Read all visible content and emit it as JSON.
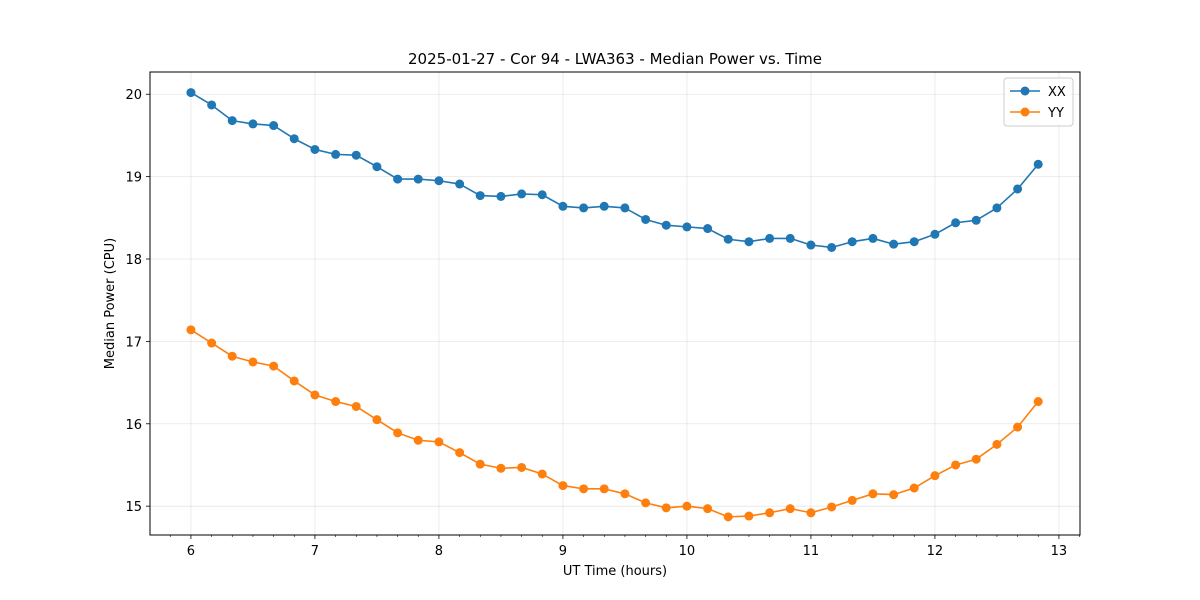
{
  "chart_data": {
    "type": "line",
    "title": "2025-01-27 - Cor 94 - LWA363 - Median Power vs. Time",
    "xlabel": "UT Time (hours)",
    "ylabel": "Median Power (CPU)",
    "xlim": [
      5.67,
      13.17
    ],
    "ylim": [
      14.65,
      20.27
    ],
    "xticks": [
      6,
      7,
      8,
      9,
      10,
      11,
      12,
      13
    ],
    "yticks": [
      15,
      16,
      17,
      18,
      19,
      20
    ],
    "grid": true,
    "legend_position": "top-right",
    "x": [
      6.0,
      6.167,
      6.333,
      6.5,
      6.667,
      6.833,
      7.0,
      7.167,
      7.333,
      7.5,
      7.667,
      7.833,
      8.0,
      8.167,
      8.333,
      8.5,
      8.667,
      8.833,
      9.0,
      9.167,
      9.333,
      9.5,
      9.667,
      9.833,
      10.0,
      10.167,
      10.333,
      10.5,
      10.667,
      10.833,
      11.0,
      11.167,
      11.333,
      11.5,
      11.667,
      11.833,
      12.0,
      12.167,
      12.333,
      12.5,
      12.667,
      12.833
    ],
    "series": [
      {
        "name": "XX",
        "color": "#1f77b4",
        "values": [
          20.02,
          19.87,
          19.68,
          19.64,
          19.62,
          19.46,
          19.33,
          19.27,
          19.26,
          19.12,
          18.97,
          18.97,
          18.95,
          18.91,
          18.77,
          18.76,
          18.79,
          18.78,
          18.64,
          18.62,
          18.64,
          18.62,
          18.48,
          18.41,
          18.39,
          18.37,
          18.24,
          18.21,
          18.25,
          18.25,
          18.17,
          18.14,
          18.21,
          18.25,
          18.18,
          18.21,
          18.3,
          18.44,
          18.47,
          18.62,
          18.85,
          19.15
        ]
      },
      {
        "name": "YY",
        "color": "#ff7f0e",
        "values": [
          17.14,
          16.98,
          16.82,
          16.75,
          16.7,
          16.52,
          16.35,
          16.27,
          16.21,
          16.05,
          15.89,
          15.8,
          15.78,
          15.65,
          15.51,
          15.46,
          15.47,
          15.39,
          15.25,
          15.21,
          15.21,
          15.15,
          15.04,
          14.98,
          15.0,
          14.97,
          14.87,
          14.88,
          14.92,
          14.97,
          14.92,
          14.99,
          15.07,
          15.15,
          15.14,
          15.22,
          15.37,
          15.5,
          15.57,
          15.75,
          15.96,
          16.27
        ]
      }
    ]
  }
}
